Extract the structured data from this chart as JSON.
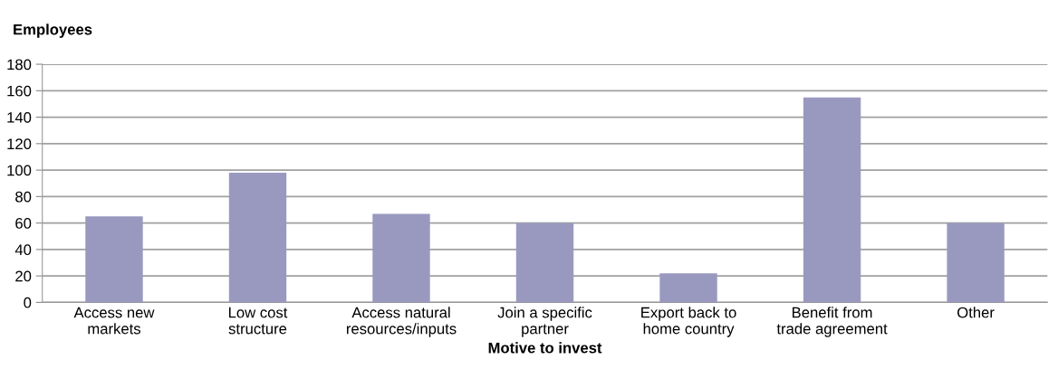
{
  "chart_data": {
    "type": "bar",
    "ylabel": "Employees",
    "xlabel": "Motive to invest",
    "categories": [
      "Access new\nmarkets",
      "Low cost\nstructure",
      "Access natural\nresources/inputs",
      "Join a specific\npartner",
      "Export back to\nhome country",
      "Benefit from\ntrade agreement",
      "Other"
    ],
    "values": [
      65,
      98,
      67,
      60,
      22,
      155,
      60
    ],
    "color": "#9999c0",
    "ylim": [
      0,
      180
    ],
    "yticks": [
      0,
      20,
      40,
      60,
      80,
      100,
      120,
      140,
      160,
      180
    ],
    "grid": "y"
  }
}
